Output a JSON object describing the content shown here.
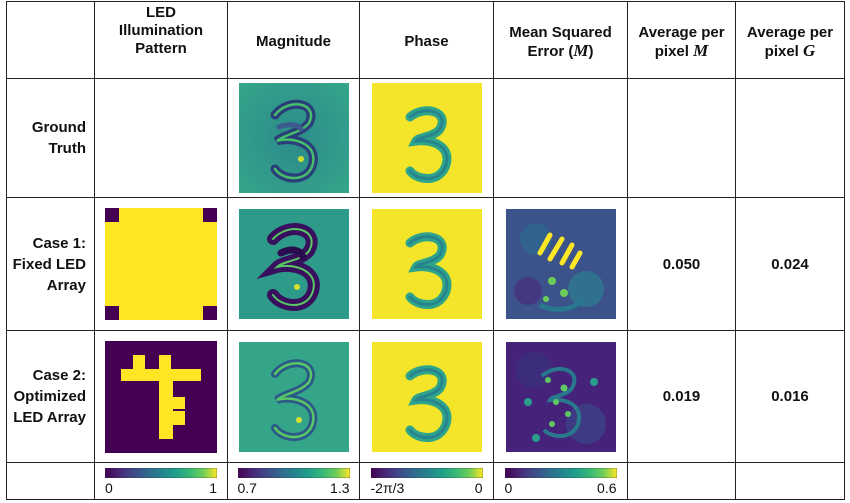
{
  "headers": {
    "led": [
      "LED",
      "Illumination",
      "Pattern"
    ],
    "magnitude": "Magnitude",
    "phase": "Phase",
    "mse": {
      "line1": "Mean Squared",
      "line2_pre": "Error (",
      "symbol": "M",
      "line2_post": ")"
    },
    "avg_m": {
      "line1": "Average per",
      "line2_pre": "pixel ",
      "symbol": "M"
    },
    "avg_g": {
      "line1": "Average per",
      "line2_pre": "pixel ",
      "symbol": "G"
    }
  },
  "rows": [
    {
      "label": [
        "Ground",
        "Truth"
      ],
      "avg_m": "",
      "avg_g": ""
    },
    {
      "label": [
        "Case 1:",
        "Fixed LED",
        "Array"
      ],
      "avg_m": "0.050",
      "avg_g": "0.024"
    },
    {
      "label": [
        "Case 2:",
        "Optimized",
        "LED Array"
      ],
      "avg_m": "0.019",
      "avg_g": "0.016"
    }
  ],
  "colorbars": {
    "led": {
      "min": "0",
      "max": "1"
    },
    "magnitude": {
      "min": "0.7",
      "max": "1.3"
    },
    "phase": {
      "min": "-2π/3",
      "max": "0"
    },
    "mse": {
      "min": "0",
      "max": "0.6"
    }
  },
  "colors": {
    "viridis_dark": "#440154",
    "viridis_mid": "#21918c",
    "viridis_yellow": "#fde725",
    "border": "#222222"
  }
}
